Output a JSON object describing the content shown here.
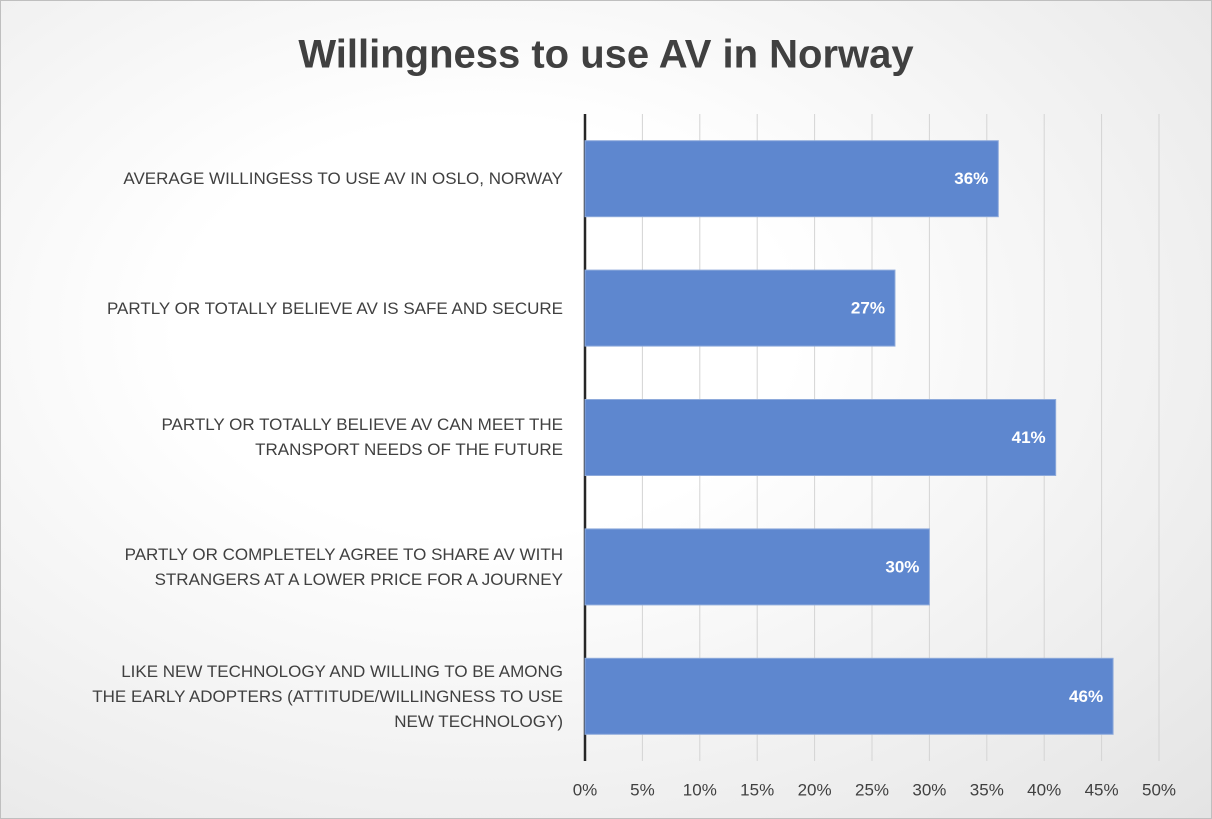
{
  "chart_data": {
    "type": "barh",
    "title": "Willingness to use AV in Norway",
    "categories": [
      "AVERAGE WILLINGESS TO USE AV IN OSLO, NORWAY",
      "PARTLY OR TOTALLY BELIEVE AV IS SAFE AND SECURE",
      "PARTLY OR TOTALLY BELIEVE AV CAN MEET THE\nTRANSPORT NEEDS OF THE FUTURE",
      "PARTLY OR COMPLETELY AGREE TO SHARE AV WITH\nSTRANGERS AT A LOWER PRICE FOR A JOURNEY",
      "LIKE NEW TECHNOLOGY AND WILLING TO BE AMONG\nTHE EARLY ADOPTERS (ATTITUDE/WILLINGNESS TO USE\nNEW TECHNOLOGY)"
    ],
    "values": [
      36,
      27,
      41,
      30,
      46
    ],
    "value_labels": [
      "36%",
      "27%",
      "41%",
      "30%",
      "46%"
    ],
    "color": "#5e87cf",
    "xlim": [
      0,
      50
    ],
    "xticks": [
      {
        "value": 0,
        "label": "0%"
      },
      {
        "value": 5,
        "label": "5%"
      },
      {
        "value": 10,
        "label": "10%"
      },
      {
        "value": 15,
        "label": "15%"
      },
      {
        "value": 20,
        "label": "20%"
      },
      {
        "value": 25,
        "label": "25%"
      },
      {
        "value": 30,
        "label": "30%"
      },
      {
        "value": 35,
        "label": "35%"
      },
      {
        "value": 40,
        "label": "40%"
      },
      {
        "value": 45,
        "label": "45%"
      },
      {
        "value": 50,
        "label": "50%"
      }
    ],
    "grid": true
  }
}
